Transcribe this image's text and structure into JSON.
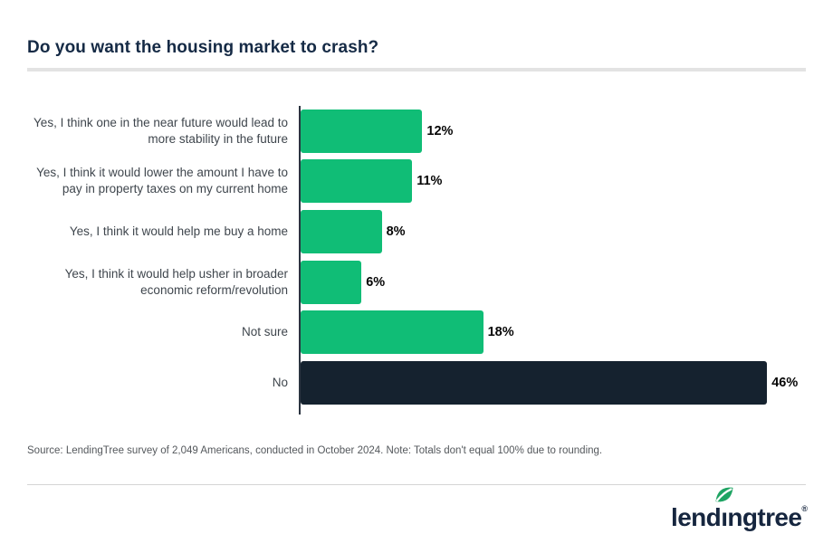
{
  "page": {
    "title": "Do you want the housing market to crash?",
    "source_note": "Source: LendingTree survey of 2,049 Americans, conducted in October 2024. Note: Totals don't equal 100% due to rounding."
  },
  "chart_data": {
    "type": "bar",
    "orientation": "horizontal",
    "title": "Do you want the housing market to crash?",
    "categories": [
      "Yes, I think one in the near future would lead to more stability in the future",
      "Yes, I think it would lower the amount I have to pay in property taxes on my current home",
      "Yes, I think it would help me buy a home",
      "Yes, I think it would help usher in broader economic reform/revolution",
      "Not sure",
      "No"
    ],
    "values": [
      12,
      11,
      8,
      6,
      18,
      46
    ],
    "value_labels": [
      "12%",
      "11%",
      "8%",
      "6%",
      "18%",
      "46%"
    ],
    "colors": [
      "#10bd76",
      "#10bd76",
      "#10bd76",
      "#10bd76",
      "#10bd76",
      "#15222f"
    ],
    "xlim": [
      0,
      50
    ],
    "grid": false,
    "legend": false,
    "value_label_position": "outside-end",
    "accent_green": "#10bd76",
    "accent_navy": "#15222f"
  },
  "brand": {
    "logo_text_before_leaf": "lend",
    "logo_leaf_letter": "ı",
    "logo_text_after_leaf": "ngtree",
    "registered_mark": "®",
    "leaf_color": "#1fa463",
    "text_color": "#16263f"
  }
}
